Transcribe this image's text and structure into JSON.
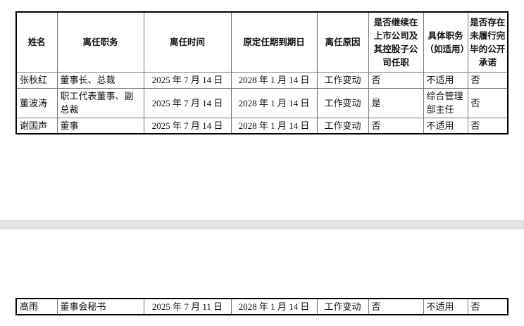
{
  "table": {
    "headers": [
      "姓名",
      "离任职务",
      "离任时间",
      "原定任期到期日",
      "离任原因",
      "是否继续在上市公司及其控股子公司任职",
      "具体职务（如适用）",
      "是否存在未履行完毕的公开承诺"
    ],
    "rows": [
      [
        "张秋红",
        "董事长、总裁",
        "2025 年 7 月 14 日",
        "2028 年 1 月 14 日",
        "工作变动",
        "否",
        "不适用",
        "否"
      ],
      [
        "董波涛",
        "职工代表董事、副总裁",
        "2025 年 7 月 14 日",
        "2028 年 1 月 14 日",
        "工作变动",
        "是",
        "综合管理部主任",
        "否"
      ],
      [
        "谢国声",
        "董事",
        "2025 年 7 月 14 日",
        "2028 年 1 月 14 日",
        "工作变动",
        "否",
        "不适用",
        "否"
      ]
    ]
  },
  "table2": {
    "rows": [
      [
        "高雨",
        "董事会秘书",
        "2025 年 7 月 11 日",
        "2028 年 1 月 14 日",
        "工作变动",
        "否",
        "不适用",
        "否"
      ]
    ]
  }
}
